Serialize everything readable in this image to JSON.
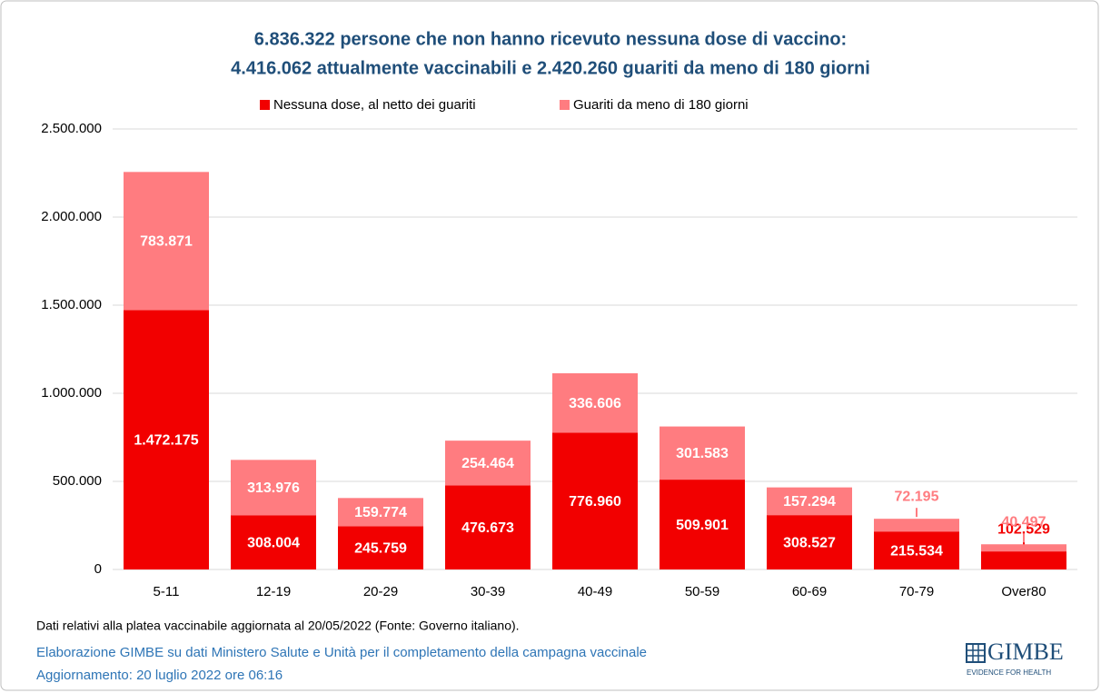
{
  "chart_data": {
    "type": "stacked_bar",
    "title": "6.836.322 persone che non hanno ricevuto nessuna dose di vaccino:",
    "subtitle": "4.416.062 attualmente vaccinabili e 2.420.260 guariti da meno di 180 giorni",
    "categories": [
      "5-11",
      "12-19",
      "20-29",
      "30-39",
      "40-49",
      "50-59",
      "60-69",
      "70-79",
      "Over80"
    ],
    "series": [
      {
        "name": "Nessuna dose, al netto dei guariti",
        "color": "#f20000",
        "values": [
          1472175,
          308004,
          245759,
          476673,
          776960,
          509901,
          308527,
          215534,
          102529
        ],
        "value_labels": [
          "1.472.175",
          "308.004",
          "245.759",
          "476.673",
          "776.960",
          "509.901",
          "308.527",
          "215.534",
          "102.529"
        ]
      },
      {
        "name": "Guariti da meno di 180 giorni",
        "color": "#ff7c80",
        "values": [
          783871,
          313976,
          159774,
          254464,
          336606,
          301583,
          157294,
          72195,
          40497
        ],
        "value_labels": [
          "783.871",
          "313.976",
          "159.774",
          "254.464",
          "336.606",
          "301.583",
          "157.294",
          "72.195",
          "40.497"
        ]
      }
    ],
    "ylim": [
      0,
      2500000
    ],
    "yticks": [
      0,
      {
        "value": 500000,
        "label": "500.000"
      },
      {
        "value": 1000000,
        "label": "1.000.000"
      },
      {
        "value": 1500000,
        "label": "1.500.000"
      },
      {
        "value": 2000000,
        "label": "2.000.000"
      },
      {
        "value": 2500000,
        "label": "2.500.000"
      }
    ],
    "grid": true,
    "legend": "top",
    "note": "Dati relativi alla platea vaccinabile aggiornata al 20/05/2022 (Fonte: Governo italiano).",
    "source": "Elaborazione GIMBE su dati Ministero Salute e Unità per il completamento della campagna vaccinale",
    "updated": "Aggiornamento: 20 luglio 2022 ore 06:16"
  },
  "logo": {
    "name": "GIMBE",
    "tagline": "EVIDENCE FOR HEALTH"
  }
}
